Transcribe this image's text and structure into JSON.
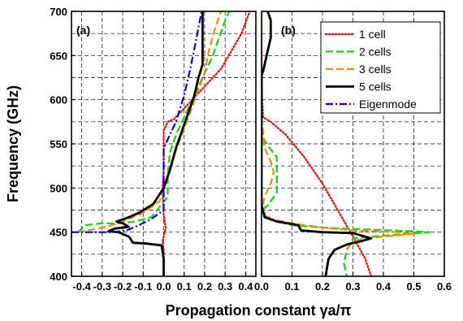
{
  "chart_data": {
    "type": "line",
    "ylabel": "Frequency (GHz)",
    "xlabel": "Propagation constant γa/π",
    "ylim": [
      400,
      700
    ],
    "yticks": [
      "400",
      "450",
      "500",
      "550",
      "600",
      "650",
      "700"
    ],
    "grid": true,
    "legend_placement": "top-right of panel (b)",
    "colors": {
      "1 cell": "#ff0000",
      "2 cells": "#00dd00",
      "3 cells": "#ff8800",
      "5 cells": "#000000",
      "Eigenmode": "#0000ee"
    },
    "panels": [
      {
        "label": "(a)",
        "xlim": [
          -0.45,
          0.45
        ],
        "xticks": [
          "-0.4",
          "-0.3",
          "-0.2",
          "-0.1",
          "0.0",
          "0.1",
          "0.2",
          "0.3",
          "0.4"
        ],
        "xtick_values": [
          -0.4,
          -0.3,
          -0.2,
          -0.1,
          0.0,
          0.1,
          0.2,
          0.3,
          0.4
        ],
        "series": [
          {
            "name": "1 cell",
            "style": "dotted",
            "points": [
              [
                0,
                400
              ],
              [
                0,
                430
              ],
              [
                -0.005,
                440
              ],
              [
                0.01,
                455
              ],
              [
                0,
                470
              ],
              [
                -0.005,
                500
              ],
              [
                0,
                520
              ],
              [
                0,
                545
              ],
              [
                0,
                565
              ],
              [
                0.02,
                575
              ],
              [
                0.05,
                578
              ],
              [
                0.1,
                590
              ],
              [
                0.16,
                605
              ],
              [
                0.22,
                620
              ],
              [
                0.28,
                635
              ],
              [
                0.33,
                655
              ],
              [
                0.38,
                675
              ],
              [
                0.42,
                700
              ]
            ]
          },
          {
            "name": "2 cells",
            "style": "dashed",
            "points": [
              [
                -0.42,
                450
              ],
              [
                -0.38,
                458
              ],
              [
                -0.3,
                460
              ],
              [
                -0.22,
                460
              ],
              [
                -0.14,
                462
              ],
              [
                -0.06,
                467
              ],
              [
                0.02,
                490
              ],
              [
                0.02,
                515
              ],
              [
                0.03,
                540
              ],
              [
                0.06,
                560
              ],
              [
                0.1,
                580
              ],
              [
                0.15,
                605
              ],
              [
                0.2,
                630
              ],
              [
                0.24,
                650
              ],
              [
                0.27,
                670
              ],
              [
                0.3,
                690
              ],
              [
                0.32,
                700
              ]
            ]
          },
          {
            "name": "3 cells",
            "style": "dashed",
            "points": [
              [
                -0.42,
                450
              ],
              [
                -0.35,
                453
              ],
              [
                -0.28,
                456
              ],
              [
                -0.2,
                462
              ],
              [
                -0.1,
                472
              ],
              [
                -0.02,
                485
              ],
              [
                0.01,
                505
              ],
              [
                0.04,
                530
              ],
              [
                0.08,
                555
              ],
              [
                0.12,
                580
              ],
              [
                0.16,
                605
              ],
              [
                0.2,
                630
              ],
              [
                0.22,
                655
              ],
              [
                0.25,
                680
              ],
              [
                0.28,
                700
              ]
            ]
          },
          {
            "name": "5 cells",
            "style": "solid",
            "points": [
              [
                0,
                400
              ],
              [
                0,
                420
              ],
              [
                -0.01,
                435
              ],
              [
                -0.08,
                437
              ],
              [
                -0.15,
                438
              ],
              [
                -0.17,
                445
              ],
              [
                -0.22,
                450
              ],
              [
                -0.27,
                451
              ],
              [
                -0.24,
                454
              ],
              [
                -0.17,
                456
              ],
              [
                -0.2,
                460
              ],
              [
                -0.23,
                462
              ],
              [
                -0.18,
                466
              ],
              [
                -0.12,
                472
              ],
              [
                -0.05,
                482
              ],
              [
                0,
                500
              ],
              [
                0.03,
                520
              ],
              [
                0.06,
                545
              ],
              [
                0.09,
                565
              ],
              [
                0.12,
                585
              ],
              [
                0.15,
                605
              ],
              [
                0.17,
                625
              ],
              [
                0.19,
                640
              ],
              [
                0.19,
                660
              ],
              [
                0.19,
                700
              ]
            ]
          },
          {
            "name": "Eigenmode",
            "style": "dashdot",
            "points": [
              [
                -0.45,
                450
              ],
              [
                -0.35,
                450
              ],
              [
                -0.25,
                450
              ],
              [
                -0.18,
                452
              ],
              [
                -0.12,
                458
              ],
              [
                -0.06,
                465
              ],
              [
                0,
                475
              ],
              [
                0,
                545
              ],
              [
                0.02,
                555
              ],
              [
                0.06,
                575
              ],
              [
                0.1,
                605
              ],
              [
                0.13,
                635
              ],
              [
                0.16,
                670
              ],
              [
                0.185,
                700
              ]
            ]
          }
        ]
      },
      {
        "label": "(b)",
        "xlim": [
          0.0,
          0.6
        ],
        "xticks": [
          "0.0",
          "0.1",
          "0.2",
          "0.3",
          "0.4",
          "0.5",
          "0.6"
        ],
        "xtick_values": [
          0.0,
          0.1,
          0.2,
          0.3,
          0.4,
          0.5,
          0.6
        ],
        "series": [
          {
            "name": "1 cell",
            "style": "dotted",
            "points": [
              [
                0.36,
                400
              ],
              [
                0.34,
                420
              ],
              [
                0.3,
                445
              ],
              [
                0.25,
                475
              ],
              [
                0.2,
                505
              ],
              [
                0.14,
                535
              ],
              [
                0.08,
                560
              ],
              [
                0.03,
                575
              ],
              [
                0.005,
                580
              ],
              [
                0.002,
                600
              ],
              [
                0,
                650
              ],
              [
                0,
                700
              ]
            ]
          },
          {
            "name": "2 cells",
            "style": "dashed",
            "points": [
              [
                0,
                700
              ],
              [
                0,
                600
              ],
              [
                0.0,
                560
              ],
              [
                0.02,
                548
              ],
              [
                0.05,
                535
              ],
              [
                0.05,
                515
              ],
              [
                0.05,
                495
              ],
              [
                0.02,
                480
              ],
              [
                0.0,
                475
              ],
              [
                0.02,
                465
              ],
              [
                0.1,
                458
              ],
              [
                0.2,
                455
              ],
              [
                0.35,
                453
              ],
              [
                0.5,
                451
              ],
              [
                0.55,
                450
              ],
              [
                0.4,
                446
              ],
              [
                0.3,
                443
              ],
              [
                0.28,
                430
              ],
              [
                0.27,
                415
              ],
              [
                0.28,
                400
              ]
            ]
          },
          {
            "name": "3 cells",
            "style": "dashed",
            "points": [
              [
                0,
                700
              ],
              [
                0,
                650
              ],
              [
                0,
                580
              ],
              [
                0.01,
                545
              ],
              [
                0.03,
                530
              ],
              [
                0.04,
                518
              ],
              [
                0.03,
                505
              ],
              [
                0.02,
                498
              ],
              [
                0.01,
                490
              ],
              [
                0,
                475
              ],
              [
                0.03,
                465
              ],
              [
                0.1,
                460
              ],
              [
                0.2,
                455
              ],
              [
                0.3,
                452
              ],
              [
                0.45,
                450
              ],
              [
                0.5,
                448
              ],
              [
                0.4,
                445
              ],
              [
                0.35,
                443
              ],
              [
                0.3,
                440
              ],
              [
                0.28,
                430
              ]
            ]
          },
          {
            "name": "5 cells",
            "style": "solid",
            "points": [
              [
                0.02,
                700
              ],
              [
                0.03,
                690
              ],
              [
                0.03,
                670
              ],
              [
                0.02,
                655
              ],
              [
                0.01,
                640
              ],
              [
                0.005,
                632
              ],
              [
                0,
                628
              ],
              [
                0,
                600
              ],
              [
                0,
                520
              ],
              [
                0,
                480
              ],
              [
                0.01,
                467
              ],
              [
                0.05,
                462
              ],
              [
                0.12,
                458
              ],
              [
                0.13,
                452
              ],
              [
                0.2,
                450
              ],
              [
                0.3,
                449
              ],
              [
                0.36,
                443
              ],
              [
                0.33,
                440
              ],
              [
                0.28,
                436
              ],
              [
                0.24,
                430
              ],
              [
                0.22,
                420
              ],
              [
                0.21,
                400
              ]
            ]
          }
        ]
      }
    ]
  }
}
